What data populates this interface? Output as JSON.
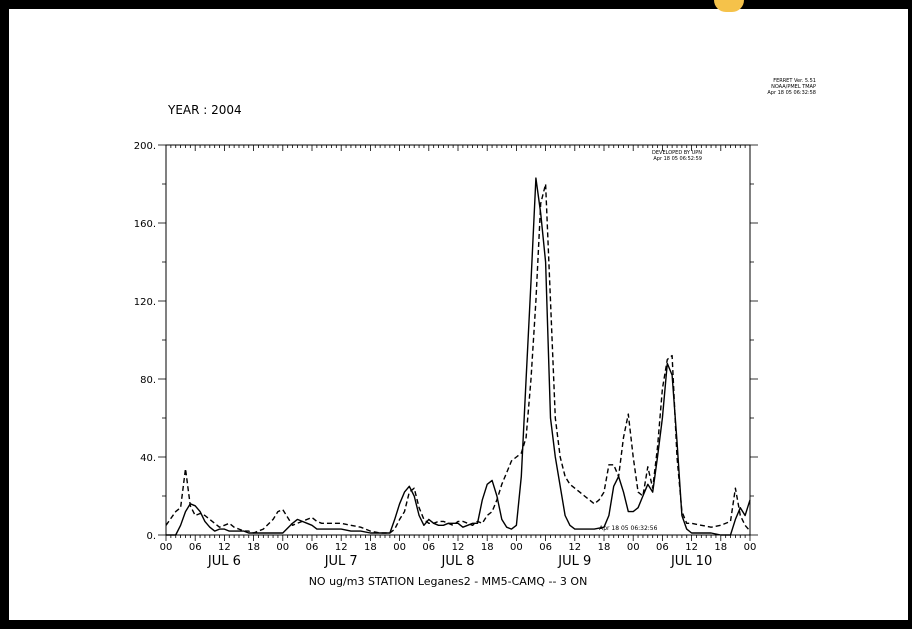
{
  "header": {
    "year_label": "YEAR : 2004",
    "ferret_version": "FERRET Ver. 5.51",
    "ferret_org": "NOAA/PMEL TMAP",
    "ferret_date": "Apr 18 05 06:32:58",
    "developer": "DEVELOPED BY UPN",
    "developer_date": "Apr 18 05 06:52:59",
    "inner_note": "Apr 18 05 06:32:56"
  },
  "chart_data": {
    "type": "line",
    "title": "NO ug/m3  STATION Leganes2 - MM5-CAMQ  -- 3 ON",
    "xlabel": "",
    "ylabel": "",
    "ylim": [
      0,
      200
    ],
    "xlim": [
      0,
      120
    ],
    "x_unit": "hours since JUL 6 00:00",
    "y_ticks": [
      0,
      40,
      80,
      120,
      160,
      200
    ],
    "y_tick_labels": [
      "0.",
      "40.",
      "80.",
      "120.",
      "160.",
      "200."
    ],
    "x_hour_ticks": [
      "00",
      "06",
      "12",
      "18",
      "00",
      "06",
      "12",
      "18",
      "00",
      "06",
      "12",
      "18",
      "00",
      "06",
      "12",
      "18",
      "00",
      "06",
      "12",
      "18",
      "00"
    ],
    "day_labels": [
      "JUL  6",
      "JUL  7",
      "JUL  8",
      "JUL  9",
      "JUL 10"
    ],
    "grid": false,
    "legend": "none",
    "series": [
      {
        "style": "solid",
        "color": "#000000",
        "points": [
          [
            0,
            0
          ],
          [
            2,
            0
          ],
          [
            3,
            5
          ],
          [
            4,
            12
          ],
          [
            5,
            16
          ],
          [
            6,
            15
          ],
          [
            7,
            12
          ],
          [
            8,
            7
          ],
          [
            9,
            4
          ],
          [
            10,
            2
          ],
          [
            11,
            3
          ],
          [
            12,
            3
          ],
          [
            13,
            2
          ],
          [
            14,
            2
          ],
          [
            15,
            2
          ],
          [
            16,
            2
          ],
          [
            17,
            1
          ],
          [
            18,
            1
          ],
          [
            20,
            1
          ],
          [
            22,
            1
          ],
          [
            24,
            1
          ],
          [
            26,
            6
          ],
          [
            27,
            8
          ],
          [
            28,
            7
          ],
          [
            29,
            6
          ],
          [
            30,
            5
          ],
          [
            31,
            3
          ],
          [
            32,
            3
          ],
          [
            33,
            3
          ],
          [
            34,
            3
          ],
          [
            36,
            3
          ],
          [
            38,
            2
          ],
          [
            40,
            2
          ],
          [
            42,
            1
          ],
          [
            44,
            1
          ],
          [
            46,
            1
          ],
          [
            47,
            8
          ],
          [
            48,
            16
          ],
          [
            49,
            22
          ],
          [
            50,
            25
          ],
          [
            51,
            20
          ],
          [
            52,
            10
          ],
          [
            53,
            5
          ],
          [
            54,
            8
          ],
          [
            55,
            6
          ],
          [
            56,
            5
          ],
          [
            57,
            5
          ],
          [
            58,
            6
          ],
          [
            59,
            6
          ],
          [
            60,
            6
          ],
          [
            61,
            4
          ],
          [
            62,
            5
          ],
          [
            63,
            6
          ],
          [
            64,
            6
          ],
          [
            65,
            18
          ],
          [
            66,
            26
          ],
          [
            67,
            28
          ],
          [
            68,
            20
          ],
          [
            69,
            8
          ],
          [
            70,
            4
          ],
          [
            71,
            3
          ],
          [
            72,
            5
          ],
          [
            73,
            30
          ],
          [
            74,
            80
          ],
          [
            75,
            130
          ],
          [
            76,
            183
          ],
          [
            77,
            165
          ],
          [
            78,
            140
          ],
          [
            79,
            60
          ],
          [
            80,
            40
          ],
          [
            81,
            25
          ],
          [
            82,
            10
          ],
          [
            83,
            5
          ],
          [
            84,
            3
          ],
          [
            86,
            3
          ],
          [
            88,
            3
          ],
          [
            90,
            4
          ],
          [
            91,
            10
          ],
          [
            92,
            25
          ],
          [
            93,
            30
          ],
          [
            94,
            22
          ],
          [
            95,
            12
          ],
          [
            96,
            12
          ],
          [
            97,
            14
          ],
          [
            98,
            20
          ],
          [
            99,
            26
          ],
          [
            100,
            22
          ],
          [
            101,
            40
          ],
          [
            102,
            60
          ],
          [
            103,
            88
          ],
          [
            104,
            82
          ],
          [
            105,
            48
          ],
          [
            106,
            10
          ],
          [
            107,
            3
          ],
          [
            108,
            1
          ],
          [
            110,
            1
          ],
          [
            112,
            1
          ],
          [
            114,
            0
          ],
          [
            116,
            0
          ],
          [
            117,
            8
          ],
          [
            118,
            14
          ],
          [
            119,
            10
          ],
          [
            120,
            18
          ]
        ]
      },
      {
        "style": "dashed",
        "color": "#000000",
        "points": [
          [
            0,
            5
          ],
          [
            2,
            12
          ],
          [
            3,
            14
          ],
          [
            4,
            34
          ],
          [
            5,
            15
          ],
          [
            6,
            10
          ],
          [
            7,
            11
          ],
          [
            8,
            10
          ],
          [
            9,
            8
          ],
          [
            10,
            6
          ],
          [
            11,
            4
          ],
          [
            12,
            5
          ],
          [
            13,
            6
          ],
          [
            14,
            4
          ],
          [
            15,
            3
          ],
          [
            16,
            2
          ],
          [
            17,
            2
          ],
          [
            18,
            1
          ],
          [
            20,
            3
          ],
          [
            22,
            8
          ],
          [
            23,
            12
          ],
          [
            24,
            13
          ],
          [
            25,
            9
          ],
          [
            26,
            5
          ],
          [
            27,
            6
          ],
          [
            28,
            7
          ],
          [
            29,
            8
          ],
          [
            30,
            9
          ],
          [
            31,
            7
          ],
          [
            32,
            6
          ],
          [
            33,
            6
          ],
          [
            34,
            6
          ],
          [
            36,
            6
          ],
          [
            38,
            5
          ],
          [
            40,
            4
          ],
          [
            42,
            2
          ],
          [
            44,
            1
          ],
          [
            46,
            1
          ],
          [
            47,
            3
          ],
          [
            48,
            8
          ],
          [
            49,
            12
          ],
          [
            50,
            22
          ],
          [
            51,
            24
          ],
          [
            52,
            14
          ],
          [
            53,
            8
          ],
          [
            54,
            6
          ],
          [
            55,
            6
          ],
          [
            56,
            7
          ],
          [
            57,
            7
          ],
          [
            58,
            6
          ],
          [
            59,
            5
          ],
          [
            60,
            7
          ],
          [
            61,
            7
          ],
          [
            62,
            6
          ],
          [
            63,
            5
          ],
          [
            64,
            7
          ],
          [
            65,
            6
          ],
          [
            66,
            10
          ],
          [
            67,
            12
          ],
          [
            68,
            18
          ],
          [
            69,
            26
          ],
          [
            70,
            32
          ],
          [
            71,
            38
          ],
          [
            72,
            40
          ],
          [
            73,
            42
          ],
          [
            74,
            50
          ],
          [
            75,
            80
          ],
          [
            76,
            120
          ],
          [
            77,
            170
          ],
          [
            78,
            180
          ],
          [
            79,
            120
          ],
          [
            80,
            60
          ],
          [
            81,
            40
          ],
          [
            82,
            30
          ],
          [
            83,
            26
          ],
          [
            84,
            24
          ],
          [
            85,
            22
          ],
          [
            86,
            20
          ],
          [
            87,
            18
          ],
          [
            88,
            16
          ],
          [
            89,
            18
          ],
          [
            90,
            22
          ],
          [
            91,
            36
          ],
          [
            92,
            36
          ],
          [
            93,
            30
          ],
          [
            94,
            50
          ],
          [
            95,
            62
          ],
          [
            96,
            40
          ],
          [
            97,
            22
          ],
          [
            98,
            20
          ],
          [
            99,
            35
          ],
          [
            100,
            24
          ],
          [
            101,
            45
          ],
          [
            102,
            75
          ],
          [
            103,
            90
          ],
          [
            104,
            92
          ],
          [
            105,
            40
          ],
          [
            106,
            12
          ],
          [
            107,
            6
          ],
          [
            108,
            6
          ],
          [
            110,
            5
          ],
          [
            112,
            4
          ],
          [
            114,
            5
          ],
          [
            116,
            7
          ],
          [
            117,
            24
          ],
          [
            118,
            10
          ],
          [
            119,
            5
          ],
          [
            120,
            2
          ]
        ]
      }
    ]
  }
}
